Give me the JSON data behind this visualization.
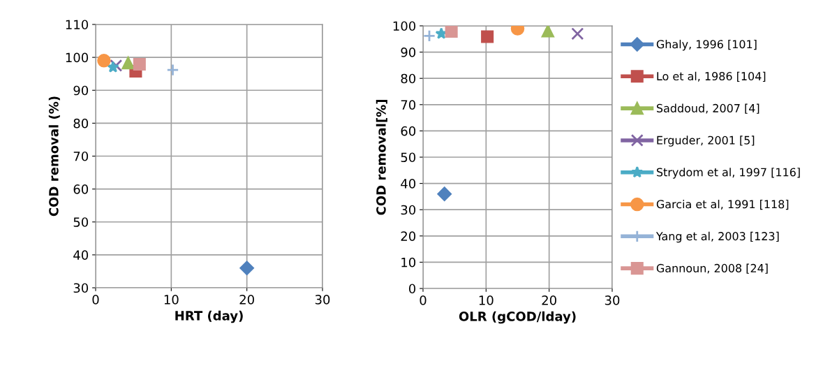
{
  "chart_data": [
    {
      "type": "scatter",
      "xlabel": "HRT (day)",
      "ylabel": "COD removal (%)",
      "xlim": [
        0,
        30
      ],
      "xticks": [
        0,
        10,
        20,
        30
      ],
      "ylim": [
        30,
        110
      ],
      "yticks": [
        30,
        40,
        50,
        60,
        70,
        80,
        90,
        100,
        110
      ],
      "grid": true,
      "series": [
        {
          "color": "#4f81bd",
          "marker": "diamond",
          "x": [
            20
          ],
          "values": [
            36
          ]
        },
        {
          "color": "#c0504d",
          "marker": "square",
          "x": [
            5.3
          ],
          "values": [
            95.8
          ]
        },
        {
          "color": "#9bbb59",
          "marker": "triangle",
          "x": [
            4.3
          ],
          "values": [
            98.3
          ]
        },
        {
          "color": "#8064a2",
          "marker": "x",
          "x": [
            2.7
          ],
          "values": [
            97.5
          ]
        },
        {
          "color": "#4bacc6",
          "marker": "star",
          "x": [
            2.3
          ],
          "values": [
            97
          ]
        },
        {
          "color": "#f79646",
          "marker": "circle",
          "x": [
            1.1
          ],
          "values": [
            99
          ]
        },
        {
          "color": "#95b3d7",
          "marker": "plus",
          "x": [
            10.2
          ],
          "values": [
            96.2
          ]
        },
        {
          "color": "#d99694",
          "marker": "square",
          "x": [
            5.8
          ],
          "values": [
            97.9
          ]
        }
      ]
    },
    {
      "type": "scatter",
      "xlabel": "OLR (gCOD/lday)",
      "ylabel": "COD removal[%]",
      "xlim": [
        0,
        30
      ],
      "xticks": [
        0,
        10,
        20,
        30
      ],
      "ylim": [
        0,
        100
      ],
      "yticks": [
        0,
        10,
        20,
        30,
        40,
        50,
        60,
        70,
        80,
        90,
        100
      ],
      "grid": true,
      "legend": "right",
      "series": [
        {
          "name": "Ghaly, 1996 [101]",
          "color": "#4f81bd",
          "marker": "diamond",
          "x": [
            3.4
          ],
          "values": [
            36
          ]
        },
        {
          "name": "Lo et al, 1986 [104]",
          "color": "#c0504d",
          "marker": "square",
          "x": [
            10.2
          ],
          "values": [
            95.9
          ]
        },
        {
          "name": "Saddoud, 2007 [4]",
          "color": "#9bbb59",
          "marker": "triangle",
          "x": [
            19.8
          ],
          "values": [
            98
          ]
        },
        {
          "name": "Erguder, 2001 [5]",
          "color": "#8064a2",
          "marker": "x",
          "x": [
            24.5
          ],
          "values": [
            97
          ]
        },
        {
          "name": "Strydom et al, 1997 [116]",
          "color": "#4bacc6",
          "marker": "star",
          "x": [
            2.9
          ],
          "values": [
            97
          ]
        },
        {
          "name": "Garcia et al, 1991 [118]",
          "color": "#f79646",
          "marker": "circle",
          "x": [
            15
          ],
          "values": [
            98.9
          ]
        },
        {
          "name": "Yang et al, 2003 [123]",
          "color": "#95b3d7",
          "marker": "plus",
          "x": [
            1
          ],
          "values": [
            96.2
          ]
        },
        {
          "name": "Gannoun, 2008 [24]",
          "color": "#d99694",
          "marker": "square",
          "x": [
            4.5
          ],
          "values": [
            97.9
          ]
        }
      ]
    }
  ]
}
